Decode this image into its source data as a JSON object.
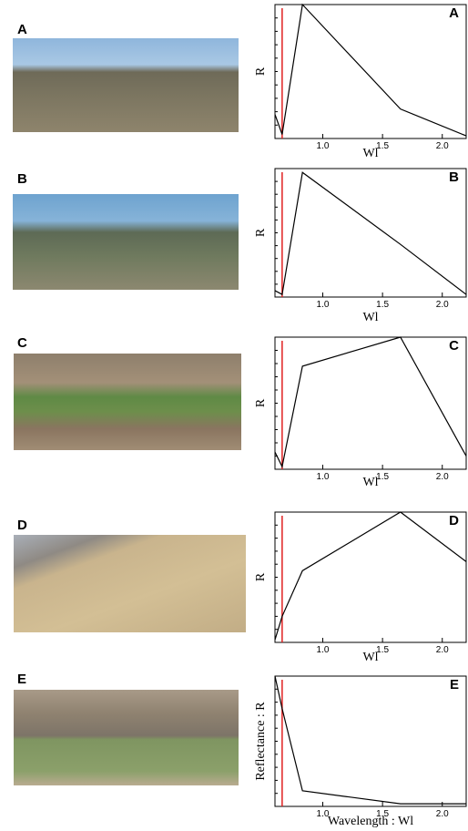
{
  "photo_labels": [
    "A",
    "B",
    "C",
    "D",
    "E"
  ],
  "chart_data": [
    {
      "type": "line",
      "panel_label": "A",
      "x_label": "Wl",
      "y_label": "R",
      "x": [
        0.6,
        0.66,
        0.83,
        1.65,
        2.2
      ],
      "values": [
        0.18,
        0.03,
        1.0,
        0.22,
        0.02
      ],
      "xlim": [
        0.6,
        2.2
      ],
      "ylim": [
        0,
        1
      ],
      "xticks": [
        {
          "value": 1,
          "label": "1.0"
        },
        {
          "value": 1.5,
          "label": "1.5"
        },
        {
          "value": 2,
          "label": "2.0"
        }
      ],
      "color": "#000000",
      "vline": 0.66,
      "vline_color": "#e02020"
    },
    {
      "type": "line",
      "panel_label": "B",
      "x_label": "Wl",
      "y_label": "R",
      "x": [
        0.6,
        0.66,
        0.83,
        1.65,
        2.2
      ],
      "values": [
        0.05,
        0.02,
        0.97,
        0.41,
        0.02
      ],
      "xlim": [
        0.6,
        2.2
      ],
      "ylim": [
        0,
        1
      ],
      "xticks": [
        {
          "value": 1,
          "label": "1.0"
        },
        {
          "value": 1.5,
          "label": "1.5"
        },
        {
          "value": 2,
          "label": "2.0"
        }
      ],
      "color": "#000000",
      "vline": 0.66,
      "vline_color": "#e02020"
    },
    {
      "type": "line",
      "panel_label": "C",
      "x_label": "Wl",
      "y_label": "R",
      "x": [
        0.6,
        0.66,
        0.83,
        1.65,
        2.2
      ],
      "values": [
        0.13,
        0.02,
        0.78,
        1.0,
        0.1
      ],
      "xlim": [
        0.6,
        2.2
      ],
      "ylim": [
        0,
        1
      ],
      "xticks": [
        {
          "value": 1,
          "label": "1.0"
        },
        {
          "value": 1.5,
          "label": "1.5"
        },
        {
          "value": 2,
          "label": "2.0"
        }
      ],
      "color": "#000000",
      "vline": 0.66,
      "vline_color": "#e02020"
    },
    {
      "type": "line",
      "panel_label": "D",
      "x_label": "Wl",
      "y_label": "R",
      "x": [
        0.6,
        0.66,
        0.83,
        1.65,
        2.2
      ],
      "values": [
        0.02,
        0.2,
        0.55,
        1.0,
        0.62
      ],
      "xlim": [
        0.6,
        2.2
      ],
      "ylim": [
        0,
        1
      ],
      "xticks": [
        {
          "value": 1,
          "label": "1.0"
        },
        {
          "value": 1.5,
          "label": "1.5"
        },
        {
          "value": 2,
          "label": "2.0"
        }
      ],
      "color": "#000000",
      "vline": 0.66,
      "vline_color": "#e02020"
    },
    {
      "type": "line",
      "panel_label": "E",
      "x_label": "Wavelength : Wl",
      "y_label": "Reflectance : R",
      "x": [
        0.6,
        0.66,
        0.83,
        1.65,
        2.2
      ],
      "values": [
        1.0,
        0.75,
        0.12,
        0.02,
        0.02
      ],
      "xlim": [
        0.6,
        2.2
      ],
      "ylim": [
        0,
        1
      ],
      "xticks": [
        {
          "value": 1,
          "label": "1.0"
        },
        {
          "value": 1.5,
          "label": "1.5"
        },
        {
          "value": 2,
          "label": "2.0"
        }
      ],
      "color": "#000000",
      "vline": 0.66,
      "vline_color": "#e02020"
    }
  ]
}
